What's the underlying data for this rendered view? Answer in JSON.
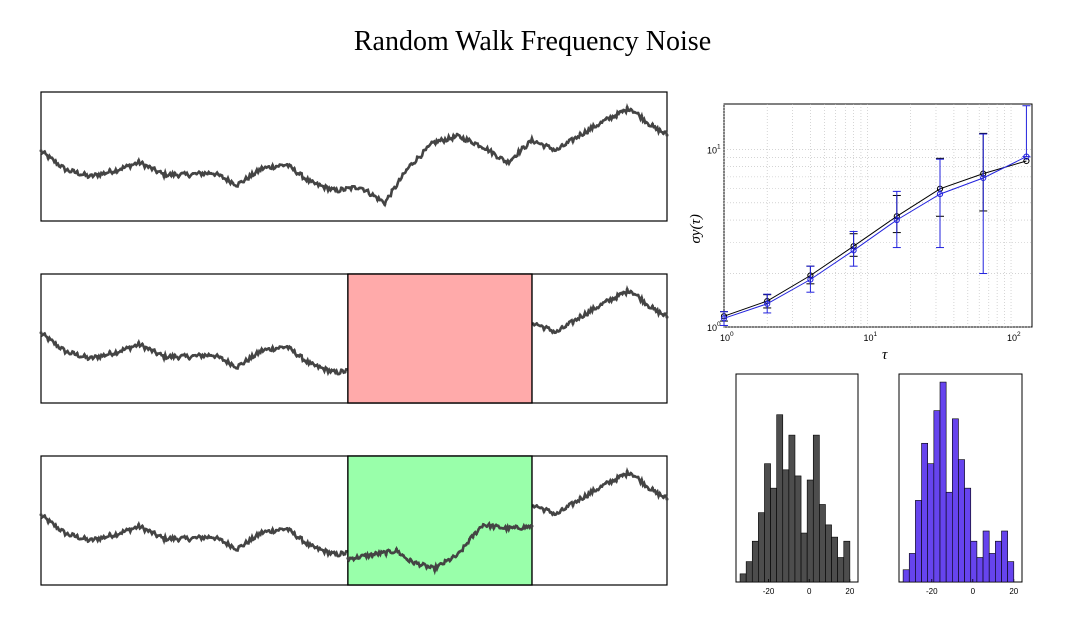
{
  "title": "Random Walk Frequency Noise",
  "colors": {
    "walk": "#444444",
    "gap_fill": "#ffaaaa",
    "filled_fill": "#99ffaa",
    "allan_black": "#000000",
    "allan_blue": "#2222dd",
    "hist_black": "#4d4d4d",
    "hist_blue": "#6644ee"
  },
  "chart_data": [
    {
      "type": "line",
      "name": "walk-original",
      "x": [
        0,
        10,
        20,
        30,
        40,
        50,
        60,
        70,
        80,
        90,
        100,
        110,
        120,
        130,
        140,
        150,
        160,
        170,
        180,
        190,
        200,
        210,
        220,
        230,
        240,
        250,
        255
      ],
      "values": [
        2.5,
        -6.5,
        -10,
        -7,
        -3,
        -9,
        -9,
        -8,
        -14,
        -6,
        -4,
        -13,
        -17,
        -15,
        -23,
        -5,
        7,
        10,
        5,
        -3,
        8,
        3,
        11,
        18,
        24,
        14,
        11
      ]
    },
    {
      "type": "line",
      "name": "walk-with-gap",
      "gap": [
        125,
        200
      ],
      "values_note": ""
    },
    {
      "type": "line",
      "name": "walk-filled",
      "fill_region": [
        125,
        200
      ],
      "fill_x": [
        125,
        135,
        145,
        150,
        160,
        170,
        175,
        180,
        190,
        200
      ],
      "fill_values": [
        -19,
        -17,
        -15,
        -20,
        -24,
        -17,
        -9,
        -2,
        -4,
        -3
      ]
    },
    {
      "type": "line",
      "scale": "log-log",
      "xlabel": "τ",
      "ylabel": "σy(τ)",
      "grid": true,
      "xticks": [
        "10",
        "10",
        "10"
      ],
      "xtick_exp": [
        "0",
        "1",
        "2"
      ],
      "yticks": [
        "10",
        "10"
      ],
      "ytick_exp": [
        "0",
        "1"
      ],
      "xlim": [
        1,
        140
      ],
      "ylim": [
        1,
        18
      ],
      "series": [
        {
          "color": "black",
          "x": [
            1,
            2,
            4,
            8,
            16,
            32,
            64,
            128
          ],
          "y": [
            1.15,
            1.4,
            1.95,
            2.85,
            4.2,
            6.0,
            7.3,
            8.6
          ],
          "err_low": [
            0.07,
            0.12,
            0.2,
            0.35,
            0.8,
            1.8,
            2.8,
            0
          ],
          "err_high": [
            0.07,
            0.12,
            0.25,
            0.5,
            1.3,
            2.9,
            5.0,
            0
          ]
        },
        {
          "color": "blue",
          "x": [
            1,
            2,
            4,
            8,
            16,
            32,
            64,
            128
          ],
          "y": [
            1.12,
            1.35,
            1.85,
            2.7,
            4.0,
            5.6,
            6.9,
            9.1
          ],
          "err_low": [
            0.1,
            0.15,
            0.28,
            0.5,
            1.2,
            2.8,
            4.9,
            0
          ],
          "err_high": [
            0.1,
            0.18,
            0.35,
            0.75,
            1.8,
            3.2,
            5.3,
            8.5
          ]
        }
      ]
    },
    {
      "type": "bar",
      "name": "hist-black",
      "xticks": [
        "-20",
        "0",
        "20"
      ],
      "xlim": [
        -36,
        24
      ],
      "bin_start": -34,
      "bin_width": 3,
      "values": [
        0.04,
        0.1,
        0.2,
        0.34,
        0.58,
        0.46,
        0.82,
        0.55,
        0.72,
        0.52,
        0.24,
        0.5,
        0.72,
        0.38,
        0.28,
        0.22,
        0.12,
        0.2
      ],
      "ylim": [
        0,
        1
      ]
    },
    {
      "type": "bar",
      "name": "hist-blue",
      "xticks": [
        "-20",
        "0",
        "20"
      ],
      "xlim": [
        -36,
        24
      ],
      "bin_start": -34,
      "bin_width": 3,
      "values": [
        0.06,
        0.14,
        0.4,
        0.68,
        0.58,
        0.84,
        0.98,
        0.44,
        0.8,
        0.6,
        0.46,
        0.2,
        0.12,
        0.25,
        0.14,
        0.2,
        0.25,
        0.1
      ],
      "ylim": [
        0,
        1
      ]
    }
  ]
}
